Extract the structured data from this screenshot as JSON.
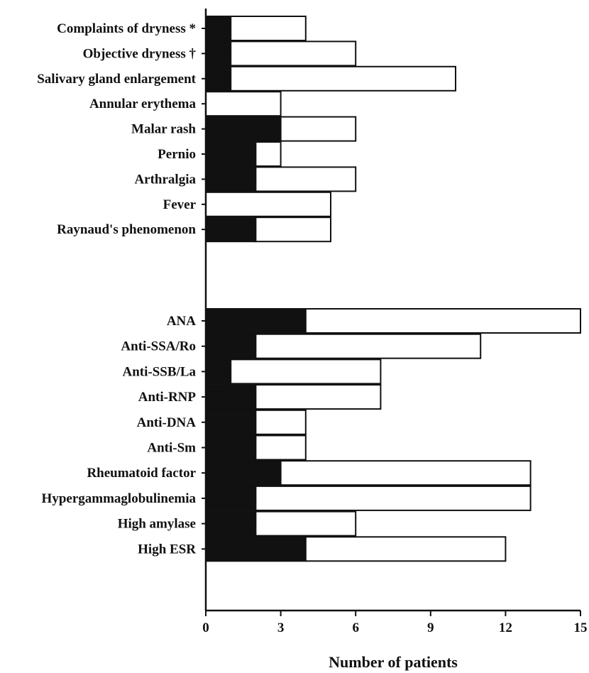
{
  "chart_data": {
    "type": "bar",
    "orientation": "horizontal",
    "stacked": true,
    "xlabel": "Number of patients",
    "ylabel": "",
    "xlim": [
      0,
      15
    ],
    "xticks": [
      "0",
      "3",
      "6",
      "9",
      "12",
      "15"
    ],
    "grid": false,
    "legend": "none",
    "categories": [
      "Complaints of dryness *",
      "Objective dryness †",
      "Salivary gland enlargement",
      "Annular erythema",
      "Malar rash",
      "Pernio",
      "Arthralgia",
      "Fever",
      "Raynaud's phenomenon",
      "ANA",
      "Anti-SSA/Ro",
      "Anti-SSB/La",
      "Anti-RNP",
      "Anti-DNA",
      "Anti-Sm",
      "Rheumatoid factor",
      "Hypergammaglobulinemia",
      "High amylase",
      "High ESR"
    ],
    "series": [
      {
        "color": "#111111",
        "values": [
          1,
          1,
          1,
          0,
          3,
          2,
          2,
          0,
          2,
          4,
          2,
          1,
          2,
          2,
          2,
          3,
          2,
          2,
          4
        ]
      },
      {
        "color": "#ffffff",
        "values": [
          3,
          5,
          9,
          3,
          3,
          1,
          4,
          5,
          3,
          11,
          9,
          6,
          5,
          2,
          2,
          10,
          11,
          4,
          8
        ]
      }
    ]
  }
}
